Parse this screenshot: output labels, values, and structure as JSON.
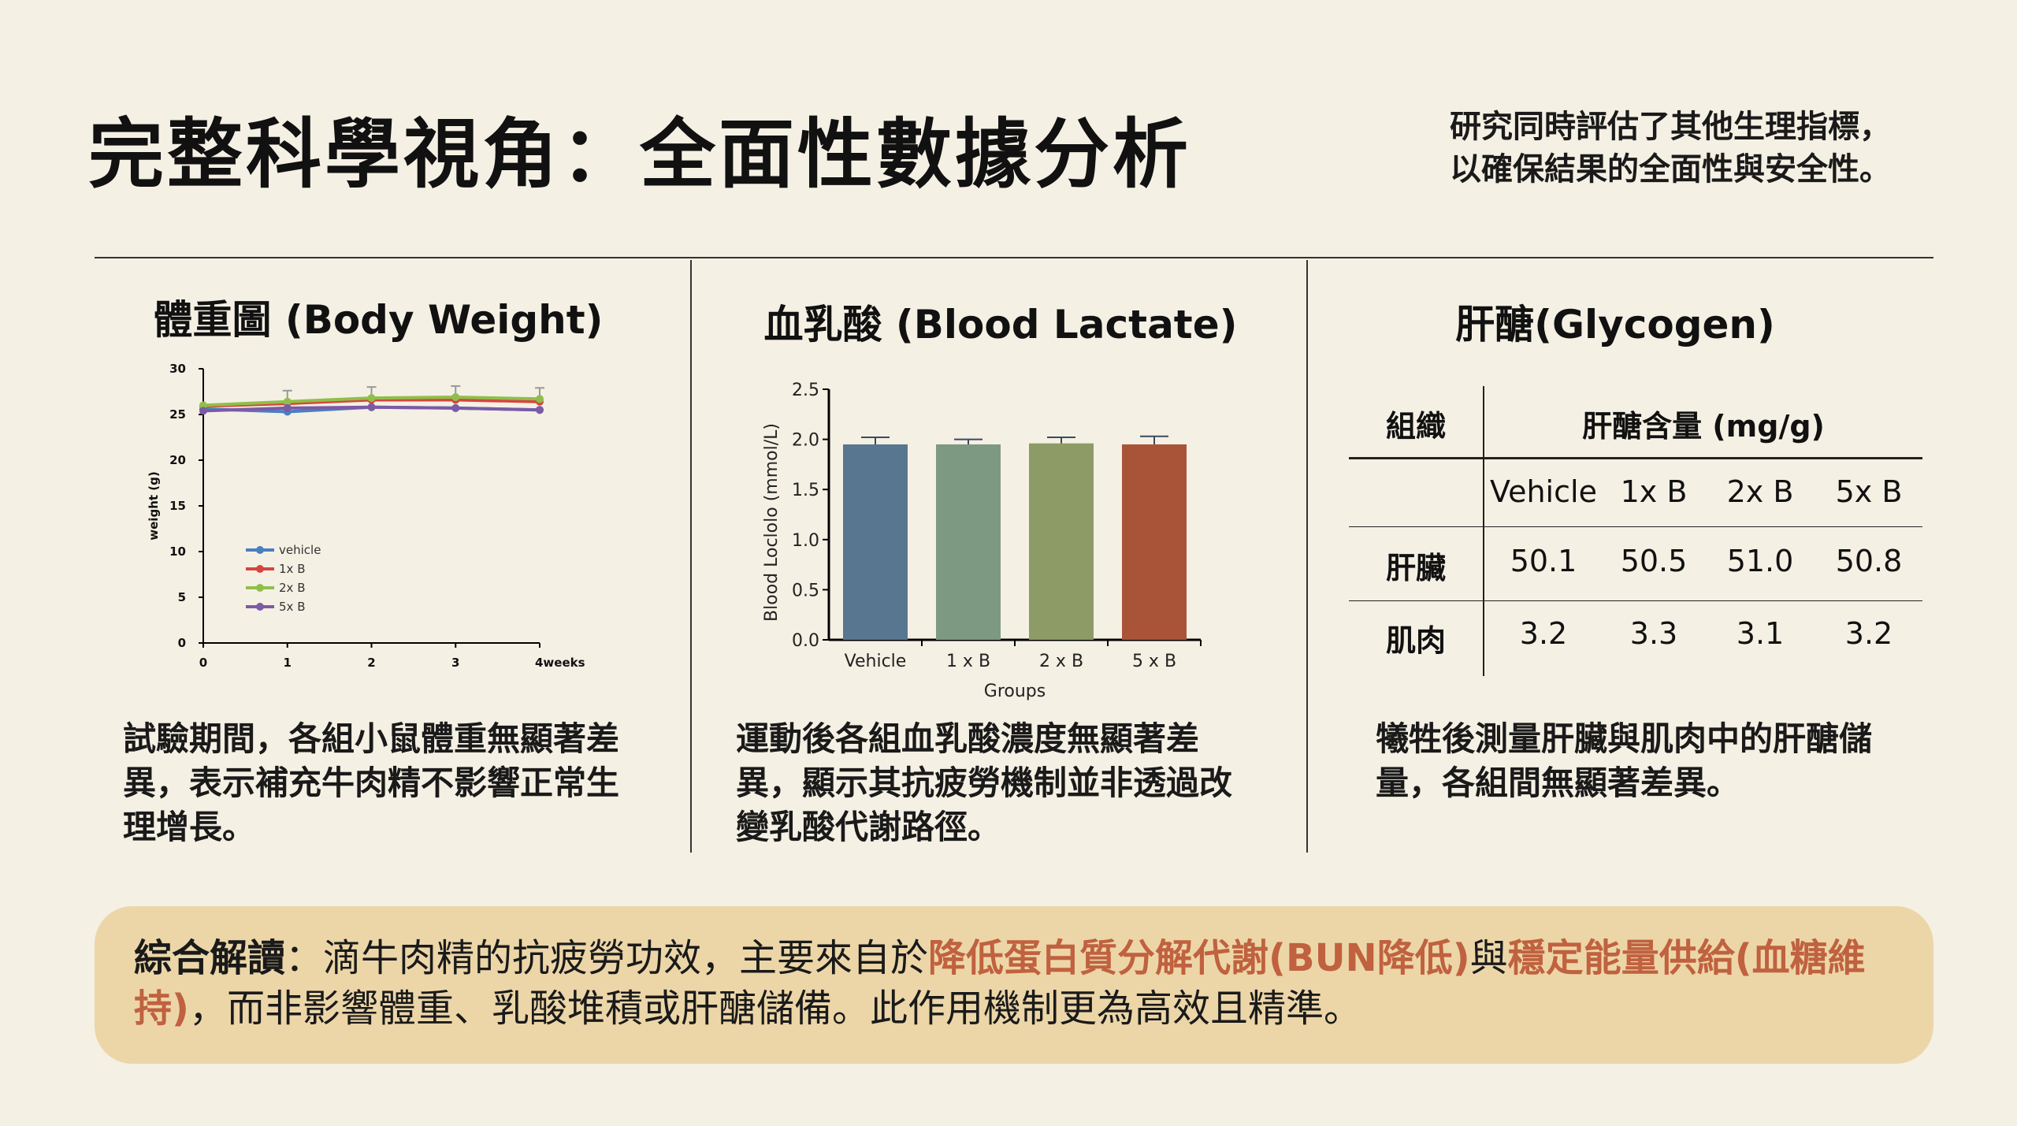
{
  "header": {
    "title": "完整科學視角：全面性數據分析",
    "subtitle_line1": "研究同時評估了其他生理指標，",
    "subtitle_line2": "以確保結果的全面性與安全性。"
  },
  "columns": {
    "body_weight": {
      "title": "體重圖 (Body Weight)",
      "description": "試驗期間，各組小鼠體重無顯著差異，表示補充牛肉精不影響正常生理增長。"
    },
    "blood_lactate": {
      "title": "血乳酸 (Blood Lactate)",
      "description": "運動後各組血乳酸濃度無顯著差異，顯示其抗疲勞機制並非透過改變乳酸代謝路徑。"
    },
    "glycogen": {
      "title": "肝醣(Glycogen)",
      "description": "犧牲後測量肝臟與肌肉中的肝醣儲量，各組間無顯著差異。",
      "table": {
        "tissue_header": "組織",
        "content_header": "肝醣含量 (mg/g)",
        "groups": [
          "Vehicle",
          "1x B",
          "2x B",
          "5x B"
        ],
        "rows": [
          {
            "tissue": "肝臟",
            "values": [
              "50.1",
              "50.5",
              "51.0",
              "50.8"
            ]
          },
          {
            "tissue": "肌肉",
            "values": [
              "3.2",
              "3.3",
              "3.1",
              "3.2"
            ]
          }
        ]
      }
    }
  },
  "summary": {
    "lead": "綜合解讀",
    "sep": "：",
    "text1": "滴牛肉精的抗疲勞功效，主要來自於",
    "hl1": "降低蛋白質分解代謝(BUN降低)",
    "text2": "與",
    "hl2": "穩定能量供給(血糖維持)",
    "text3": "，而非影響體重、乳酸堆積或肝醣儲備。此作用機制更為高效且精準。"
  },
  "colors": {
    "background": "#f5f0e4",
    "summary_bg": "#ecd6a8",
    "highlight": "#c0613f"
  },
  "chart_data": [
    {
      "type": "line",
      "x": [
        0,
        1,
        2,
        3,
        4
      ],
      "x_tick_labels": [
        "0",
        "1",
        "2",
        "3",
        "4weeks"
      ],
      "ylabel": "weight (g)",
      "ylim": [
        0,
        30
      ],
      "y_ticks": [
        0,
        5,
        10,
        15,
        20,
        25,
        30
      ],
      "legend_position": "center-left",
      "series": [
        {
          "name": "vehicle",
          "color": "#4a7fc1",
          "values": [
            25.6,
            25.3,
            25.8,
            25.7,
            25.5
          ]
        },
        {
          "name": "1x B",
          "color": "#d6453f",
          "values": [
            25.9,
            26.2,
            26.6,
            26.6,
            26.4
          ]
        },
        {
          "name": "2x B",
          "color": "#8fbf4a",
          "values": [
            26.0,
            26.4,
            26.8,
            26.9,
            26.7
          ]
        },
        {
          "name": "5x B",
          "color": "#7b5aa6",
          "values": [
            25.4,
            25.7,
            25.8,
            25.7,
            25.5
          ]
        }
      ]
    },
    {
      "type": "bar",
      "categories": [
        "Vehicle",
        "1 x B",
        "2 x B",
        "5 x B"
      ],
      "values": [
        1.95,
        1.95,
        1.96,
        1.95
      ],
      "errors": [
        0.07,
        0.05,
        0.06,
        0.08
      ],
      "colors": [
        "#587690",
        "#7d9981",
        "#8d9b66",
        "#a95438"
      ],
      "xlabel": "Groups",
      "ylabel": "Blood Loclolo (mmol/L)",
      "ylim": [
        0,
        2.5
      ],
      "y_ticks": [
        "0.0",
        "0.5",
        "1.0",
        "1.5",
        "2.0",
        "2.5"
      ]
    }
  ]
}
